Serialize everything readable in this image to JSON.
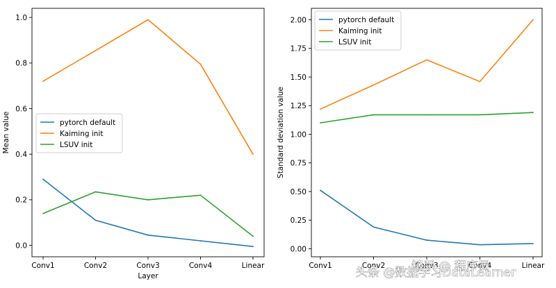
{
  "chart_data": [
    {
      "type": "line",
      "title": "",
      "xlabel": "Layer",
      "ylabel": "Mean value",
      "categories": [
        "Conv1",
        "Conv2",
        "Conv3",
        "Conv4",
        "Linear"
      ],
      "ylim": [
        -0.05,
        1.04
      ],
      "yticks": [
        0.0,
        0.2,
        0.4,
        0.6,
        0.8,
        1.0
      ],
      "ytick_labels": [
        "0.0",
        "0.2",
        "0.4",
        "0.6",
        "0.8",
        "1.0"
      ],
      "legend_position": "center-left",
      "series": [
        {
          "name": "pytorch default",
          "color": "#1f77b4",
          "values": [
            0.29,
            0.11,
            0.045,
            0.02,
            -0.005
          ]
        },
        {
          "name": "Kaiming init",
          "color": "#ff7f0e",
          "values": [
            0.72,
            0.855,
            0.99,
            0.795,
            0.4
          ]
        },
        {
          "name": "LSUV init",
          "color": "#2ca02c",
          "values": [
            0.14,
            0.235,
            0.2,
            0.22,
            0.04
          ]
        }
      ]
    },
    {
      "type": "line",
      "title": "",
      "xlabel": "",
      "ylabel": "Standard deviation value",
      "categories": [
        "Conv1",
        "Conv2",
        "Conv3",
        "Conv4",
        "Linear"
      ],
      "ylim": [
        -0.07,
        2.1
      ],
      "yticks": [
        0.0,
        0.25,
        0.5,
        0.75,
        1.0,
        1.25,
        1.5,
        1.75,
        2.0
      ],
      "ytick_labels": [
        "0.00",
        "0.25",
        "0.50",
        "0.75",
        "1.00",
        "1.25",
        "1.50",
        "1.75",
        "2.00"
      ],
      "legend_position": "top-left",
      "series": [
        {
          "name": "pytorch default",
          "color": "#1f77b4",
          "values": [
            0.51,
            0.19,
            0.075,
            0.035,
            0.045
          ]
        },
        {
          "name": "Kaiming init",
          "color": "#ff7f0e",
          "values": [
            1.22,
            1.43,
            1.65,
            1.46,
            2.0
          ]
        },
        {
          "name": "LSUV init",
          "color": "#2ca02c",
          "values": [
            1.1,
            1.17,
            1.17,
            1.17,
            1.19
          ]
        }
      ]
    }
  ],
  "watermark": "头条 @数据学习DataLearner",
  "watermark2": "知乎 @ 程序员"
}
